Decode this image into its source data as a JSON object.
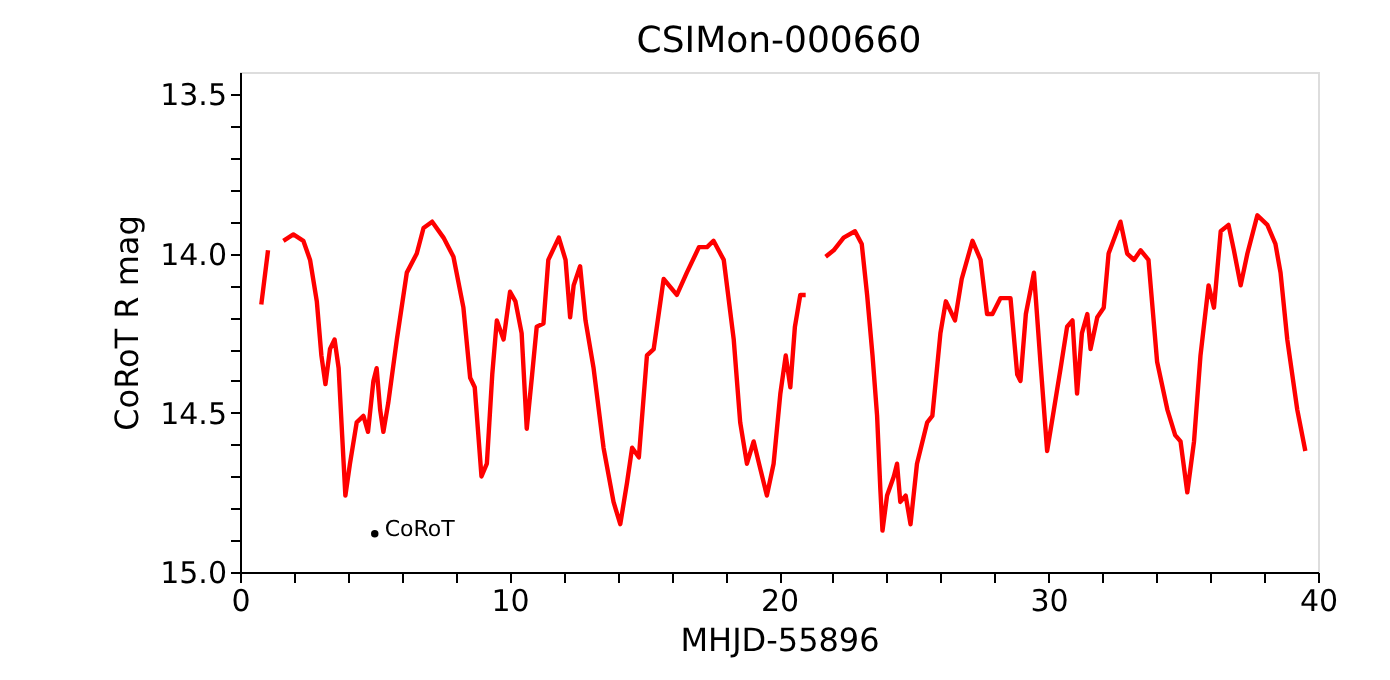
{
  "chart_data": {
    "type": "line",
    "title": "CSIMon-000660",
    "xlabel": "MHJD-55896",
    "ylabel": "CoRoT R mag",
    "xlim": [
      0,
      40
    ],
    "ylim": [
      15.0,
      13.43
    ],
    "xticks": [
      0,
      {
        "value": 2,
        "label": null
      },
      {
        "value": 4,
        "label": null
      },
      {
        "value": 6,
        "label": null
      },
      {
        "value": 8,
        "label": null
      },
      10,
      {
        "value": 12,
        "label": null
      },
      {
        "value": 14,
        "label": null
      },
      {
        "value": 16,
        "label": null
      },
      {
        "value": 18,
        "label": null
      },
      20,
      {
        "value": 22,
        "label": null
      },
      {
        "value": 24,
        "label": null
      },
      {
        "value": 26,
        "label": null
      },
      {
        "value": 28,
        "label": null
      },
      30,
      {
        "value": 32,
        "label": null
      },
      {
        "value": 34,
        "label": null
      },
      {
        "value": 36,
        "label": null
      },
      {
        "value": 38,
        "label": null
      },
      40
    ],
    "yticks": [
      13.5,
      {
        "value": 13.6,
        "label": null
      },
      {
        "value": 13.7,
        "label": null
      },
      {
        "value": 13.8,
        "label": null
      },
      {
        "value": 13.9,
        "label": null
      },
      {
        "value": 14,
        "label": "14.0"
      },
      {
        "value": 14.1,
        "label": null
      },
      {
        "value": 14.2,
        "label": null
      },
      {
        "value": 14.3,
        "label": null
      },
      {
        "value": 14.4,
        "label": null
      },
      14.5,
      {
        "value": 14.6,
        "label": null
      },
      {
        "value": 14.7,
        "label": null
      },
      {
        "value": 14.8,
        "label": null
      },
      {
        "value": 14.9,
        "label": null
      },
      {
        "value": 15,
        "label": "15.0"
      }
    ],
    "grid": false,
    "marker": "none",
    "line_style": "solid",
    "series": [
      {
        "type": "scatter",
        "name": "CoRoT",
        "color": "#000000",
        "x": [
          5.0
        ],
        "values": [
          14.88
        ]
      },
      {
        "color": "#ff0000",
        "x": [
          0.79,
          1.04,
          1.3,
          1.61,
          1.98,
          2.35,
          2.6,
          2.85,
          3.02,
          3.17,
          3.34,
          3.51,
          3.66,
          3.79,
          3.91,
          4.08,
          4.33,
          4.58,
          4.75,
          4.95,
          5.07,
          5.2,
          5.32,
          5.5,
          5.82,
          6.19,
          6.56,
          6.81,
          7.13,
          7.55,
          7.92,
          8.29,
          8.54,
          8.71,
          8.96,
          9.16,
          9.36,
          9.53,
          9.78,
          10.02,
          10.22,
          10.45,
          10.64,
          10.84,
          11.01,
          11.26,
          11.44,
          11.83,
          12.08,
          12.25,
          12.38,
          12.62,
          12.82,
          13.12,
          13.49,
          13.86,
          14.11,
          14.36,
          14.55,
          14.8,
          15.1,
          15.35,
          15.72,
          16.21,
          16.58,
          17.03,
          17.33,
          17.57,
          17.95,
          18.32,
          18.56,
          18.81,
          19.06,
          19.26,
          19.55,
          19.8,
          20.05,
          20.25,
          20.42,
          20.59,
          20.79,
          20.99,
          21.4,
          21.73,
          22.03,
          22.4,
          22.82,
          23.07,
          23.27,
          23.47,
          23.64,
          23.76,
          23.84,
          24.01,
          24.26,
          24.38,
          24.5,
          24.7,
          24.88,
          25.12,
          25.5,
          25.69,
          25.99,
          26.19,
          26.53,
          26.78,
          27.18,
          27.48,
          27.72,
          27.92,
          28.22,
          28.59,
          28.84,
          28.96,
          29.16,
          29.46,
          29.7,
          29.95,
          30.2,
          30.45,
          30.69,
          30.89,
          31.06,
          31.24,
          31.44,
          31.56,
          31.81,
          32.05,
          32.23,
          32.67,
          32.92,
          33.17,
          33.42,
          33.71,
          34.03,
          34.41,
          34.7,
          34.9,
          35.15,
          35.4,
          35.64,
          35.94,
          36.14,
          36.39,
          36.68,
          36.88,
          37.13,
          37.38,
          37.75,
          38.12,
          38.42,
          38.61,
          38.86,
          39.23,
          39.53
        ],
        "values": [
          14.16,
          13.99,
          null,
          13.96,
          13.94,
          13.96,
          14.02,
          14.15,
          14.32,
          14.41,
          14.3,
          14.27,
          14.36,
          14.57,
          14.76,
          14.66,
          14.53,
          14.51,
          14.56,
          14.4,
          14.36,
          14.49,
          14.56,
          14.47,
          14.27,
          14.06,
          14.0,
          13.92,
          13.9,
          13.95,
          14.01,
          14.17,
          14.39,
          14.42,
          14.7,
          14.66,
          14.38,
          14.21,
          14.27,
          14.12,
          14.15,
          14.25,
          14.55,
          14.38,
          14.23,
          14.22,
          14.02,
          13.95,
          14.02,
          14.2,
          14.1,
          14.04,
          14.21,
          14.36,
          14.61,
          14.78,
          14.85,
          14.72,
          14.61,
          14.64,
          14.32,
          14.3,
          14.08,
          14.13,
          14.06,
          13.98,
          13.98,
          13.96,
          14.02,
          14.27,
          14.53,
          14.66,
          14.59,
          14.66,
          14.76,
          14.66,
          14.44,
          14.32,
          14.42,
          14.23,
          14.13,
          14.13,
          null,
          14.01,
          13.99,
          13.95,
          13.93,
          13.97,
          14.13,
          14.32,
          14.51,
          14.74,
          14.87,
          14.76,
          14.7,
          14.66,
          14.78,
          14.76,
          14.85,
          14.66,
          14.53,
          14.51,
          14.25,
          14.15,
          14.21,
          14.08,
          13.96,
          14.02,
          14.19,
          14.19,
          14.14,
          14.14,
          14.38,
          14.4,
          14.19,
          14.06,
          14.34,
          14.62,
          14.49,
          14.36,
          14.23,
          14.21,
          14.44,
          14.25,
          14.19,
          14.3,
          14.2,
          14.17,
          14.0,
          13.9,
          14.0,
          14.02,
          13.99,
          14.02,
          14.34,
          14.49,
          14.57,
          14.59,
          14.75,
          14.59,
          14.32,
          14.1,
          14.17,
          13.93,
          13.91,
          13.99,
          14.1,
          14.0,
          13.88,
          13.91,
          13.97,
          14.06,
          14.27,
          14.49,
          14.62
        ]
      }
    ]
  }
}
